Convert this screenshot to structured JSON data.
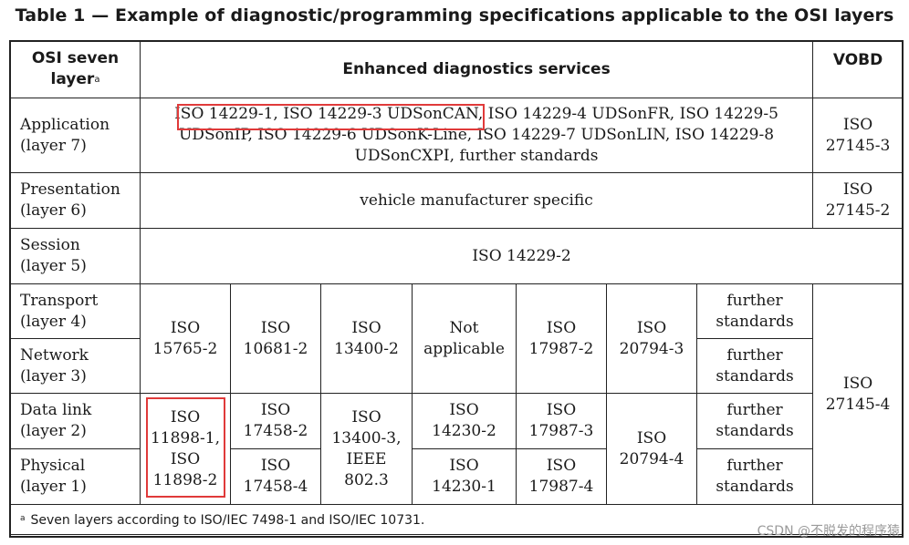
{
  "title": "Table 1 — Example of diagnostic/programming specifications applicable to the OSI layers",
  "header": {
    "col1": "OSI seven layer",
    "col1_sup": "a",
    "col2": "Enhanced diagnostics services",
    "col3": "VOBD"
  },
  "application": {
    "layer": [
      "Application",
      "(layer 7)"
    ],
    "services": [
      "ISO 14229-1, ISO 14229-3 UDSonCAN, ISO 14229-4 UDSonFR, ISO 14229-5",
      "UDSonIP, ISO 14229-6 UDSonK-Line, ISO 14229-7 UDSonLIN, ISO 14229-8",
      "UDSonCXPI, further standards"
    ],
    "vobd": [
      "ISO",
      "27145-3"
    ]
  },
  "presentation": {
    "layer": [
      "Presentation",
      "(layer 6)"
    ],
    "services": "vehicle manufacturer specific",
    "vobd": [
      "ISO",
      "27145-2"
    ]
  },
  "session": {
    "layer": [
      "Session",
      "(layer 5)"
    ],
    "services": "ISO 14229-2"
  },
  "transport": {
    "layer": [
      "Transport",
      "(layer 4)"
    ],
    "further": [
      "further",
      "standards"
    ]
  },
  "network": {
    "layer": [
      "Network",
      "(layer 3)"
    ],
    "further": [
      "further",
      "standards"
    ]
  },
  "datalink": {
    "layer": [
      "Data link",
      "(layer 2)"
    ],
    "c2": [
      "ISO",
      "17458-2"
    ],
    "c4": [
      "ISO",
      "14230-2"
    ],
    "c5": [
      "ISO",
      "17987-3"
    ],
    "further": [
      "further",
      "standards"
    ]
  },
  "physical": {
    "layer": [
      "Physical",
      "(layer 1)"
    ],
    "c2": [
      "ISO",
      "17458-4"
    ],
    "c4": [
      "ISO",
      "14230-1"
    ],
    "c5": [
      "ISO",
      "17987-4"
    ],
    "further": [
      "further",
      "standards"
    ]
  },
  "tn": {
    "c1": [
      "ISO",
      "15765-2"
    ],
    "c2": [
      "ISO",
      "10681-2"
    ],
    "c3": [
      "ISO",
      "13400-2"
    ],
    "c4": [
      "Not",
      "applicable"
    ],
    "c5": [
      "ISO",
      "17987-2"
    ],
    "c6": [
      "ISO",
      "20794-3"
    ]
  },
  "dp": {
    "c1": [
      "ISO",
      "11898-1,",
      "ISO",
      "11898-2"
    ],
    "c3": [
      "ISO",
      "13400-3,",
      "IEEE",
      "802.3"
    ],
    "c6": [
      "ISO",
      "20794-4"
    ]
  },
  "vobd_low": [
    "ISO",
    "27145-4"
  ],
  "footnote": {
    "sup": "a",
    "text": "Seven layers according to ISO/IEC 7498-1 and ISO/IEC 10731."
  },
  "watermark": "CSDN @不脱发的程序猿",
  "colors": {
    "highlight": "#e03a3a",
    "border": "#222222"
  }
}
